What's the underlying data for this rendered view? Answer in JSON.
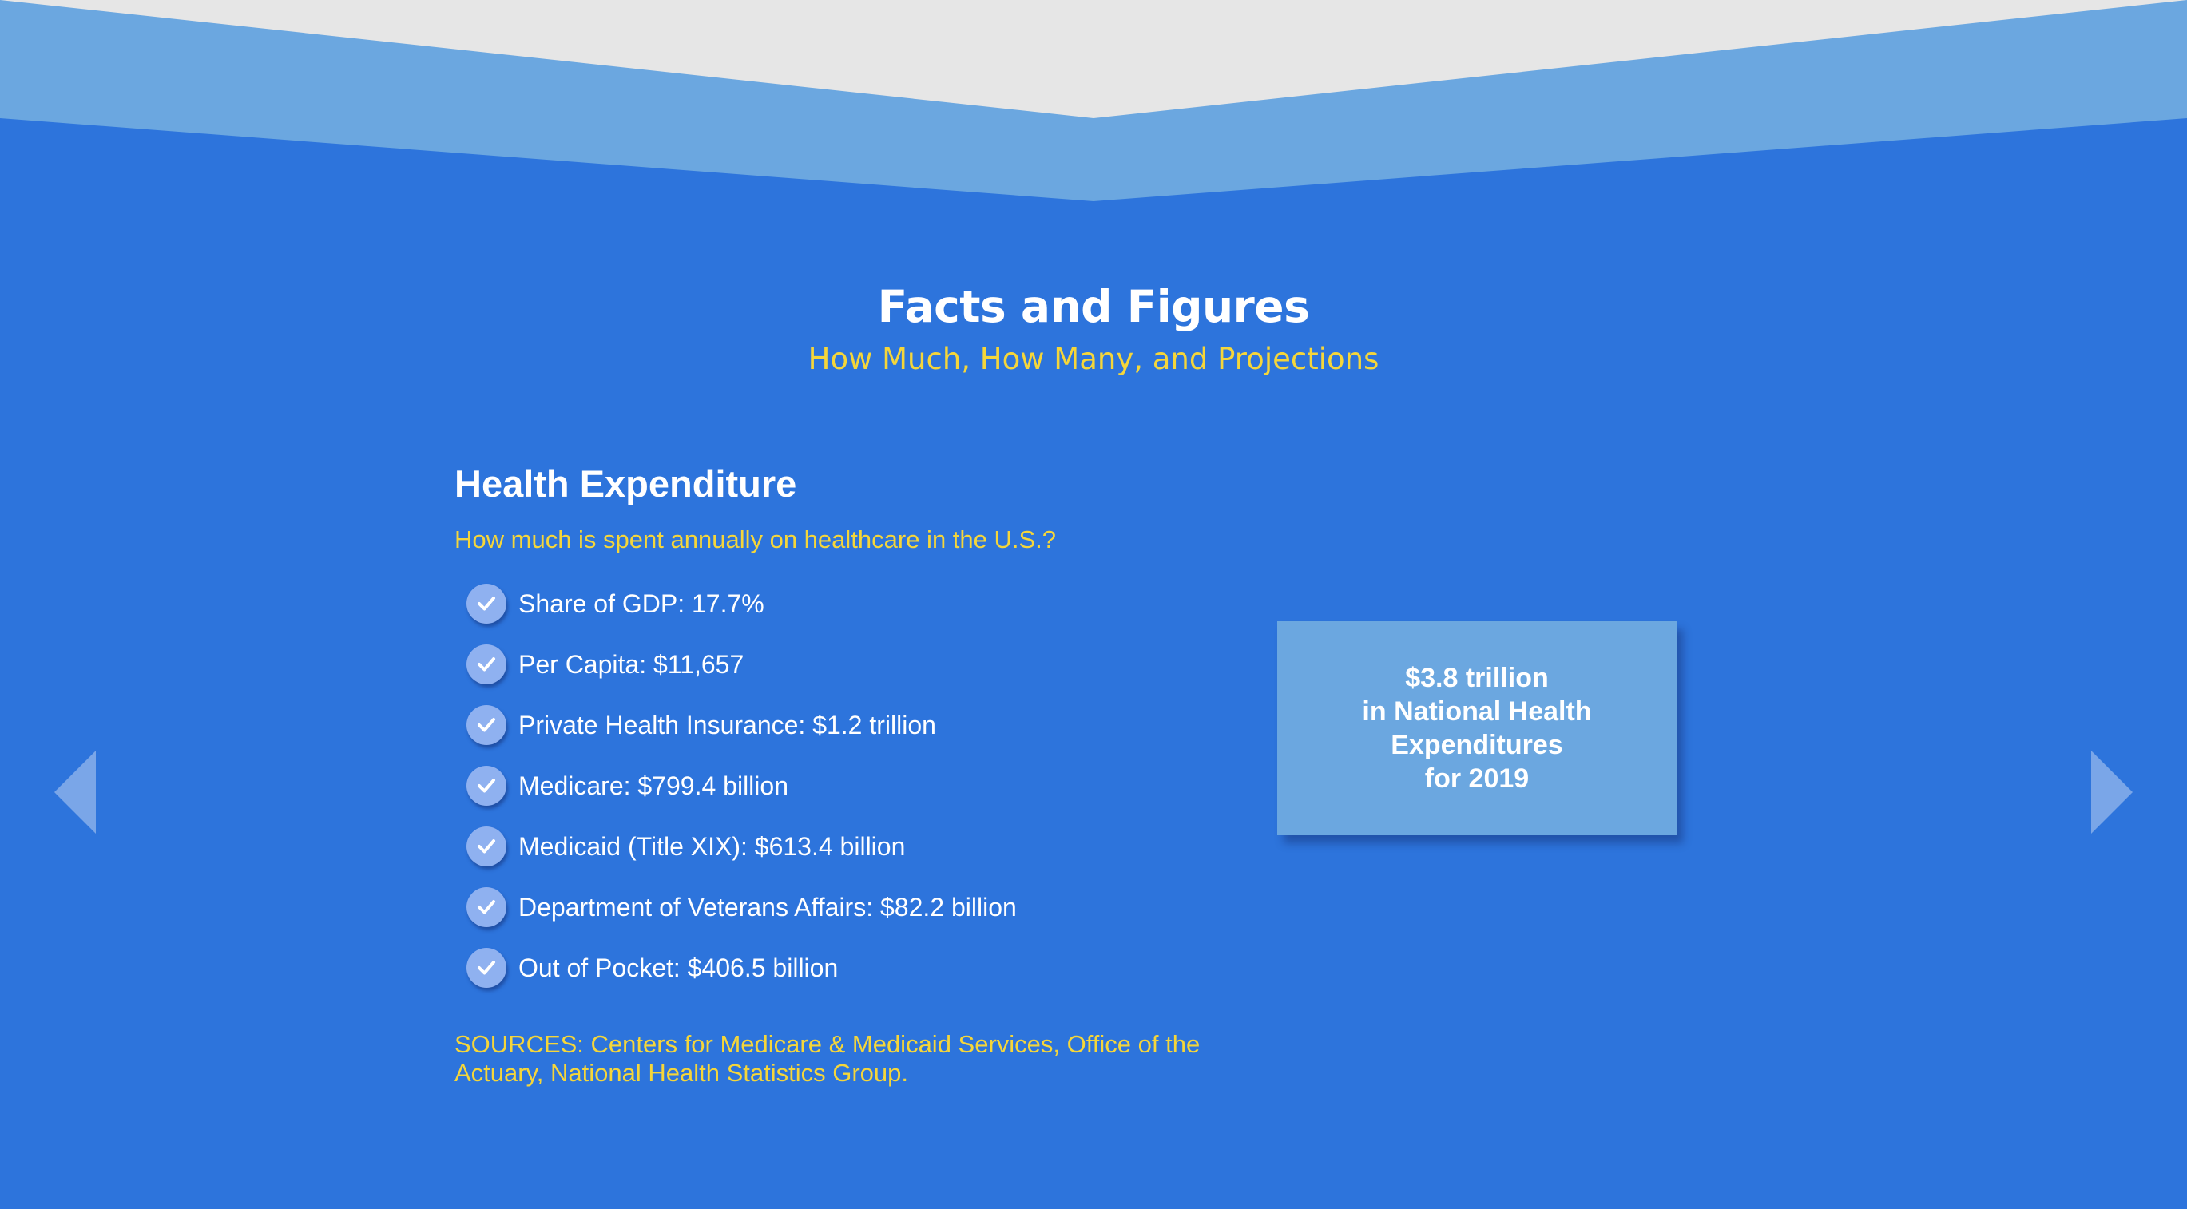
{
  "colors": {
    "background": "#2d74dc",
    "light_band": "#6ba7e0",
    "top_grey": "#e6e6e6",
    "title_text": "#ffffff",
    "accent_yellow": "#f5d63a",
    "check_badge": "#8fb1f0",
    "nav_arrow": "#7aa6e8"
  },
  "header": {
    "title": "Facts and Figures",
    "subtitle": "How Much, How Many, and Projections"
  },
  "section": {
    "title": "Health Expenditure",
    "question": "How much is spent annually on healthcare in the U.S.?",
    "items": [
      {
        "icon": "checkmark-icon",
        "text": "Share of GDP: 17.7%"
      },
      {
        "icon": "checkmark-icon",
        "text": "Per Capita: $11,657"
      },
      {
        "icon": "checkmark-icon",
        "text": "Private Health Insurance: $1.2 trillion"
      },
      {
        "icon": "checkmark-icon",
        "text": "Medicare: $799.4 billion"
      },
      {
        "icon": "checkmark-icon",
        "text": "Medicaid (Title XIX): $613.4 billion"
      },
      {
        "icon": "checkmark-icon",
        "text": "Department of Veterans Affairs: $82.2 billion"
      },
      {
        "icon": "checkmark-icon",
        "text": "Out of Pocket: $406.5 billion"
      }
    ],
    "sources": "SOURCES: Centers for Medicare & Medicaid Services, Office of the Actuary, National Health Statistics Group."
  },
  "highlight": {
    "line1": "$3.8 trillion",
    "line2": "in National Health",
    "line3": "Expenditures",
    "line4": "for 2019"
  },
  "nav": {
    "prev_icon": "arrow-left-icon",
    "next_icon": "arrow-right-icon"
  }
}
